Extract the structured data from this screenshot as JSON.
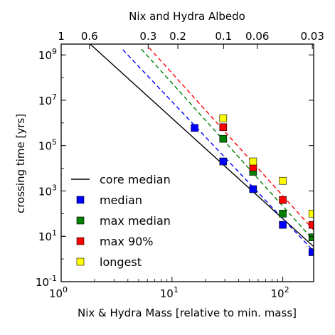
{
  "chart_data": {
    "type": "scatter",
    "title": "",
    "top_axis": {
      "label": "Nix and Hydra Albedo",
      "ticks": [
        {
          "label": "1",
          "mass": 1
        },
        {
          "label": "0.6",
          "mass": 1.8
        },
        {
          "label": "0.3",
          "mass": 6.1
        },
        {
          "label": "0.2",
          "mass": 11.3
        },
        {
          "label": "0.1",
          "mass": 29.2
        },
        {
          "label": "0.06",
          "mass": 58.9
        },
        {
          "label": "0.03",
          "mass": 185
        }
      ]
    },
    "xlabel": "Nix & Hydra Mass [relative to min. mass]",
    "ylabel": "crossing time [yrs]",
    "xscale": "log",
    "yscale": "log",
    "xlim": [
      1,
      190
    ],
    "ylim": [
      0.1,
      3000000000.0
    ],
    "x_ticks": [
      {
        "value": 1,
        "base": "10",
        "exp": "0"
      },
      {
        "value": 10,
        "base": "10",
        "exp": "1"
      },
      {
        "value": 100,
        "base": "10",
        "exp": "2"
      }
    ],
    "y_ticks": [
      {
        "value": 0.1,
        "base": "10",
        "exp": "-1"
      },
      {
        "value": 10,
        "base": "10",
        "exp": "1"
      },
      {
        "value": 1000,
        "base": "10",
        "exp": "3"
      },
      {
        "value": 100000,
        "base": "10",
        "exp": "5"
      },
      {
        "value": 10000000,
        "base": "10",
        "exp": "7"
      },
      {
        "value": 1000000000,
        "base": "10",
        "exp": "9"
      }
    ],
    "legend_position": "lower-left",
    "lines": [
      {
        "name": "core median",
        "color": "#000000",
        "style": "solid",
        "x": [
          1.8,
          190
        ],
        "y": [
          3200000000.0,
          3.5
        ]
      },
      {
        "name": "",
        "color": "#0000ff",
        "style": "dashed",
        "x": [
          3.6,
          190
        ],
        "y": [
          1700000000.0,
          2.2
        ]
      },
      {
        "name": "",
        "color": "#008000",
        "style": "dashed",
        "x": [
          5.3,
          190
        ],
        "y": [
          1800000000.0,
          6.6
        ]
      },
      {
        "name": "",
        "color": "#ff0000",
        "style": "dashed",
        "x": [
          6.2,
          190
        ],
        "y": [
          2100000000.0,
          19
        ]
      }
    ],
    "series": [
      {
        "name": "median",
        "color": "#0000ff",
        "x": [
          16,
          29,
          54,
          100,
          185
        ],
        "y": [
          600000,
          20000,
          1200,
          32,
          2
        ]
      },
      {
        "name": "max median",
        "color": "#008000",
        "x": [
          29,
          54,
          100,
          185
        ],
        "y": [
          200000,
          7000,
          100,
          9
        ]
      },
      {
        "name": "max 90%",
        "color": "#ff0000",
        "x": [
          29,
          54,
          100,
          185
        ],
        "y": [
          650000,
          11000,
          400,
          32
        ]
      },
      {
        "name": "longest",
        "color": "#ffff00",
        "x": [
          29,
          54,
          100,
          185
        ],
        "y": [
          1600000,
          20000,
          2800,
          100
        ]
      }
    ]
  }
}
